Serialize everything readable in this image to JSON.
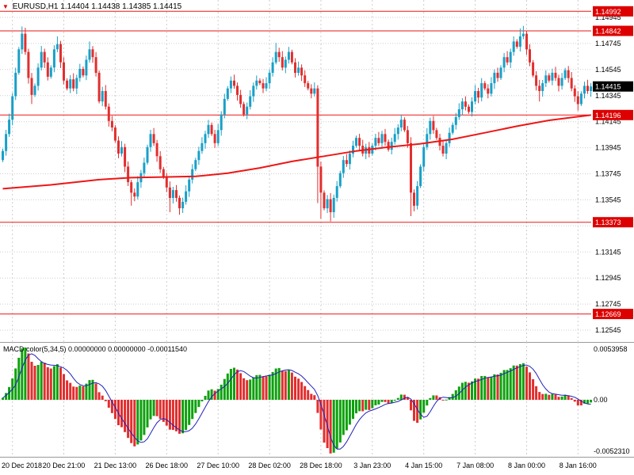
{
  "title": {
    "symbol_period": "EURUSD,H1",
    "ohlc": "1.14404 1.14438 1.14385 1.14415"
  },
  "macd_title": {
    "name": "MACD color(5,34,5)",
    "values": "0.00000000 0.00000000 -0.00011540"
  },
  "colors": {
    "up": "#18a0c8",
    "down": "#e22e2e",
    "ma": "#ee1616",
    "level": "#ee1616",
    "level_badge": "#dd0000",
    "current_badge": "#000000",
    "grid": "#cdcdcd",
    "hist_up": "#0da10d",
    "hist_down": "#e22e2e",
    "signal": "#2020bb"
  },
  "chart_data": {
    "type": "candlestick",
    "symbol": "EURUSD",
    "timeframe": "H1",
    "title": "EURUSD,H1 1.14404 1.14438 1.14385 1.14415",
    "x_labels": [
      "20 Dec 2018",
      "20 Dec 21:00",
      "21 Dec 13:00",
      "26 Dec 18:00",
      "27 Dec 10:00",
      "28 Dec 02:00",
      "28 Dec 18:00",
      "3 Jan 23:00",
      "4 Jan 15:00",
      "7 Jan 08:00",
      "8 Jan 00:00",
      "8 Jan 16:00"
    ],
    "y_axis_labels": [
      "1.14945",
      "1.14745",
      "1.14545",
      "1.14345",
      "1.14145",
      "1.13945",
      "1.13745",
      "1.13545",
      "1.13145",
      "1.12945",
      "1.12745",
      "1.12545"
    ],
    "y_gridlines": [
      1.14945,
      1.14745,
      1.14545,
      1.14345,
      1.14145,
      1.13945,
      1.13745,
      1.13545,
      1.13345,
      1.13145,
      1.12945,
      1.12745,
      1.12545
    ],
    "level_lines": [
      {
        "price": 1.14992,
        "label": "1.14992"
      },
      {
        "price": 1.14842,
        "label": "1.14842"
      },
      {
        "price": 1.14196,
        "label": "1.14196"
      },
      {
        "price": 1.13373,
        "label": "1.13373"
      },
      {
        "price": 1.12669,
        "label": "1.12669"
      }
    ],
    "current_price": {
      "price": 1.14415,
      "label": "1.14415"
    },
    "candles": {
      "first_open": 1.1385,
      "closes": [
        1.1392,
        1.1405,
        1.1416,
        1.1434,
        1.1452,
        1.147,
        1.1482,
        1.1468,
        1.1448,
        1.1435,
        1.1442,
        1.1456,
        1.1468,
        1.146,
        1.1449,
        1.1456,
        1.147,
        1.1474,
        1.146,
        1.1446,
        1.144,
        1.1447,
        1.144,
        1.1448,
        1.1455,
        1.145,
        1.1462,
        1.147,
        1.1464,
        1.1452,
        1.143,
        1.1438,
        1.1426,
        1.1415,
        1.141,
        1.14,
        1.139,
        1.1395,
        1.138,
        1.1368,
        1.136,
        1.1357,
        1.1368,
        1.1375,
        1.1383,
        1.1395,
        1.1405,
        1.1398,
        1.1388,
        1.1378,
        1.1372,
        1.1364,
        1.1356,
        1.1362,
        1.1356,
        1.1348,
        1.1353,
        1.1361,
        1.137,
        1.1378,
        1.1385,
        1.1392,
        1.1398,
        1.1405,
        1.1412,
        1.1405,
        1.1398,
        1.1408,
        1.142,
        1.1432,
        1.144,
        1.1446,
        1.1442,
        1.1435,
        1.1428,
        1.142,
        1.1426,
        1.1434,
        1.1442,
        1.1446,
        1.1444,
        1.144,
        1.1444,
        1.1452,
        1.146,
        1.1468,
        1.1464,
        1.1456,
        1.1462,
        1.1468,
        1.146,
        1.1452,
        1.1456,
        1.145,
        1.1444,
        1.144,
        1.1436,
        1.144,
        1.138,
        1.136,
        1.1348,
        1.1355,
        1.1345,
        1.1356,
        1.1365,
        1.1375,
        1.1385,
        1.1382,
        1.139,
        1.1396,
        1.1402,
        1.1396,
        1.139,
        1.1395,
        1.139,
        1.1396,
        1.1402,
        1.1398,
        1.1405,
        1.1399,
        1.1393,
        1.1399,
        1.1405,
        1.141,
        1.1416,
        1.1408,
        1.1398,
        1.136,
        1.135,
        1.1365,
        1.138,
        1.1395,
        1.1405,
        1.1415,
        1.1408,
        1.1402,
        1.1396,
        1.139,
        1.1398,
        1.1406,
        1.1412,
        1.1418,
        1.1424,
        1.143,
        1.1426,
        1.1422,
        1.143,
        1.1438,
        1.1433,
        1.1444,
        1.144,
        1.1436,
        1.1444,
        1.1452,
        1.1448,
        1.1456,
        1.1464,
        1.146,
        1.1468,
        1.1476,
        1.1472,
        1.148,
        1.1482,
        1.147,
        1.146,
        1.145,
        1.1442,
        1.1438,
        1.1444,
        1.145,
        1.1446,
        1.1452,
        1.1448,
        1.1442,
        1.1448,
        1.1454,
        1.1448,
        1.144,
        1.1434,
        1.1428,
        1.1436,
        1.1442,
        1.1438,
        1.14415
      ],
      "wick_overrides": {
        "6": {
          "h": 1.14875
        },
        "9": {
          "l": 1.1428
        },
        "17": {
          "h": 1.148
        },
        "27": {
          "h": 1.1476
        },
        "40": {
          "l": 1.135
        },
        "52": {
          "l": 1.1345
        },
        "55": {
          "l": 1.1343
        },
        "85": {
          "h": 1.1475
        },
        "98": {
          "l": 1.1352
        },
        "99": {
          "l": 1.134
        },
        "102": {
          "l": 1.1338
        },
        "127": {
          "l": 1.1342
        },
        "161": {
          "h": 1.1486
        },
        "162": {
          "h": 1.1488
        },
        "167": {
          "l": 1.143
        },
        "179": {
          "l": 1.1423
        }
      }
    },
    "ma_line": {
      "points": [
        [
          0,
          1.1363
        ],
        [
          15,
          1.1366
        ],
        [
          30,
          1.137
        ],
        [
          40,
          1.13715
        ],
        [
          50,
          1.1372
        ],
        [
          60,
          1.13725
        ],
        [
          70,
          1.1375
        ],
        [
          80,
          1.1379
        ],
        [
          90,
          1.1384
        ],
        [
          100,
          1.1388
        ],
        [
          110,
          1.1392
        ],
        [
          120,
          1.1395
        ],
        [
          130,
          1.13975
        ],
        [
          140,
          1.1401
        ],
        [
          150,
          1.1406
        ],
        [
          160,
          1.1411
        ],
        [
          170,
          1.14155
        ],
        [
          178,
          1.1418
        ],
        [
          183,
          1.14195
        ]
      ]
    },
    "macd": {
      "fast": 5,
      "slow": 34,
      "signal": 5,
      "label": "MACD color(5,34,5) 0.00000000 0.00000000 -0.00011540",
      "axis_max_label": "0.0053958",
      "axis_zero_label": "0.00",
      "axis_min_label": "-0.0052310"
    }
  }
}
